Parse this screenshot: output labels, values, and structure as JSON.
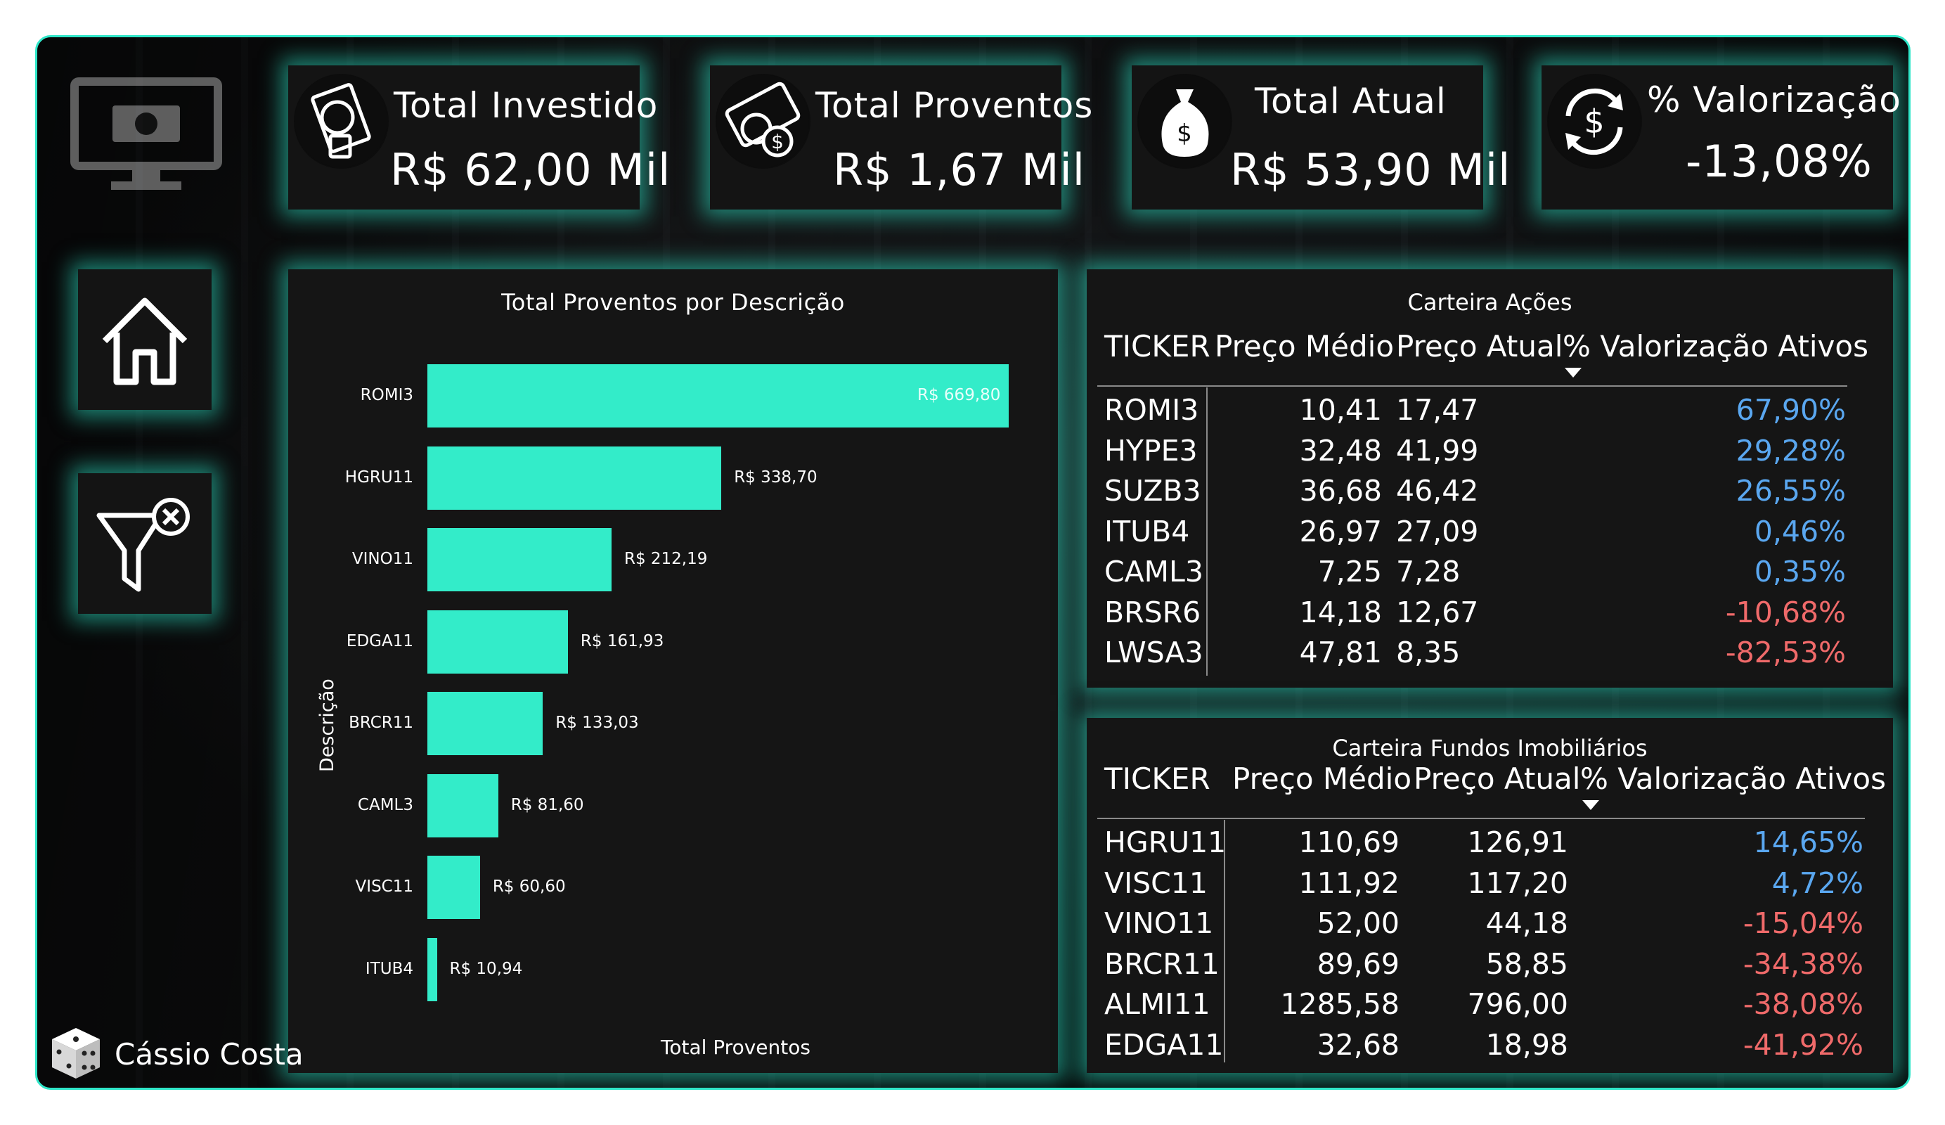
{
  "kpis": [
    {
      "label": "Total Investido",
      "value": "R$ 62,00 Mil",
      "icon": "money-hand-icon"
    },
    {
      "label": "Total Proventos",
      "value": "R$ 1,67 Mil",
      "icon": "coins-icon"
    },
    {
      "label": "Total Atual",
      "value": "R$ 53,90 Mil",
      "icon": "money-bag-icon"
    },
    {
      "label": "% Valorização",
      "value": "-13,08%",
      "icon": "dollar-refresh-icon"
    }
  ],
  "side": {
    "home_icon": "home-icon",
    "filter_icon": "clear-filter-icon"
  },
  "author": {
    "name": "Cássio Costa",
    "icon": "dice-icon"
  },
  "chart_data": {
    "type": "bar",
    "orientation": "horizontal",
    "title": "Total Proventos por Descrição",
    "xlabel": "Total Proventos",
    "ylabel": "Descrição",
    "categories": [
      "ROMI3",
      "HGRU11",
      "VINO11",
      "EDGA11",
      "BRCR11",
      "CAML3",
      "VISC11",
      "ITUB4"
    ],
    "values": [
      669.8,
      338.7,
      212.19,
      161.93,
      133.03,
      81.6,
      60.6,
      10.94
    ],
    "value_labels": [
      "R$ 669,80",
      "R$ 338,70",
      "R$ 212,19",
      "R$ 161,93",
      "R$ 133,03",
      "R$ 81,60",
      "R$ 60,60",
      "R$ 10,94"
    ],
    "xlim": [
      0,
      669.8
    ],
    "bar_color": "#33ecc9",
    "grid": false
  },
  "acoes": {
    "title": "Carteira Ações",
    "headers": [
      "TICKER",
      "Preço Médio",
      "Preço Atual",
      "% Valorização Ativos"
    ],
    "rows": [
      [
        "ROMI3",
        "10,41",
        "17,47",
        "67,90%"
      ],
      [
        "HYPE3",
        "32,48",
        "41,99",
        "29,28%"
      ],
      [
        "SUZB3",
        "36,68",
        "46,42",
        "26,55%"
      ],
      [
        "ITUB4",
        "26,97",
        "27,09",
        "0,46%"
      ],
      [
        "CAML3",
        "7,25",
        "7,28",
        "0,35%"
      ],
      [
        "BRSR6",
        "14,18",
        "12,67",
        "-10,68%"
      ],
      [
        "LWSA3",
        "47,81",
        "8,35",
        "-82,53%"
      ]
    ]
  },
  "fundos": {
    "title": "Carteira Fundos Imobiliários",
    "headers": [
      "TICKER",
      "Preço Médio",
      "Preço Atual",
      "% Valorização Ativos"
    ],
    "rows": [
      [
        "HGRU11",
        "110,69",
        "126,91",
        "14,65%"
      ],
      [
        "VISC11",
        "111,92",
        "117,20",
        "4,72%"
      ],
      [
        "VINO11",
        "52,00",
        "44,18",
        "-15,04%"
      ],
      [
        "BRCR11",
        "89,69",
        "58,85",
        "-34,38%"
      ],
      [
        "ALMI11",
        "1285,58",
        "796,00",
        "-38,08%"
      ],
      [
        "EDGA11",
        "32,68",
        "18,98",
        "-41,92%"
      ]
    ]
  },
  "colors": {
    "accent": "#2ee6c8",
    "positive": "#5aa7f0",
    "negative": "#f06a6a"
  }
}
